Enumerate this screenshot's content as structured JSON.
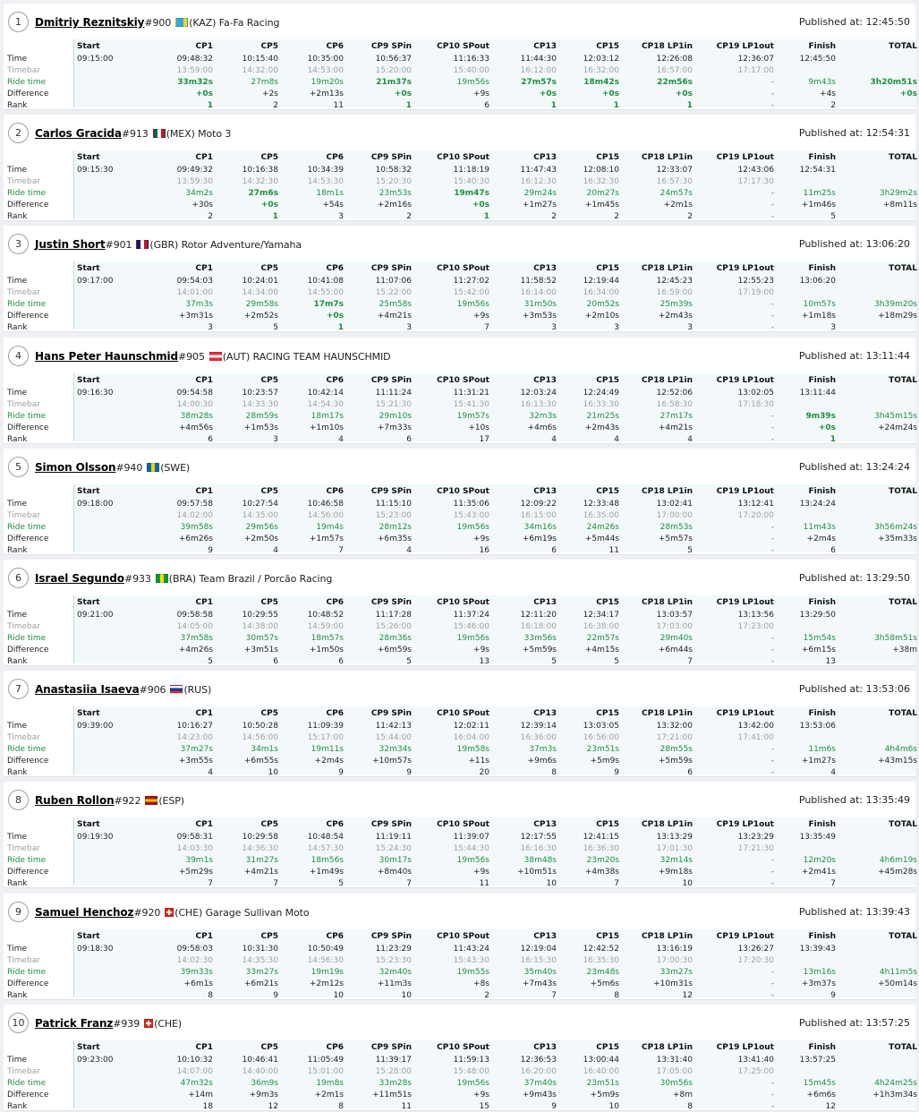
{
  "columns": {
    "start": "Start",
    "checkpoints": [
      "CP1",
      "CP5",
      "CP6",
      "CP9 SPin",
      "CP10 SPout",
      "CP13",
      "CP15",
      "CP18 LP1in",
      "CP19 LP1out"
    ],
    "finish": "Finish",
    "total": "TOTAL"
  },
  "row_labels": {
    "time": "Time",
    "timebar": "Timebar",
    "ride": "Ride time",
    "diff": "Difference",
    "rank": "Rank"
  },
  "published_label": "Published at:",
  "flag_colors": {
    "KAZ": [
      "#31a9e0",
      "#31a9e0",
      "#ffd700"
    ],
    "MEX": [
      "#006847",
      "#ffffff",
      "#ce1126"
    ],
    "GBR": [
      "#012169",
      "#ffffff",
      "#c8102e"
    ],
    "AUT": [
      "#ed2939",
      "#ffffff",
      "#ed2939"
    ],
    "SWE": [
      "#006aa7",
      "#fecc00",
      "#006aa7"
    ],
    "BRA": [
      "#009c3b",
      "#ffdf00",
      "#009c3b"
    ],
    "RUS": [
      "#ffffff",
      "#0039a6",
      "#d52b1e"
    ],
    "ESP": [
      "#aa151b",
      "#f1bf00",
      "#aa151b"
    ],
    "CHE": [
      "#d52b1e",
      "#ffffff",
      "#d52b1e"
    ]
  },
  "riders": [
    {
      "position": "1",
      "name": "Dmitriy Reznitskiy",
      "number": "#900",
      "country": "KAZ",
      "team": "(KAZ) Fa-Fa Racing",
      "published": "12:45:50",
      "start": "09:15:00",
      "time": [
        "09:48:32",
        "10:15:40",
        "10:35:00",
        "10:56:37",
        "11:16:33",
        "11:44:30",
        "12:03:12",
        "12:26:08",
        "12:36:07"
      ],
      "timebar": [
        "13:59:00",
        "14:32:00",
        "14:53:00",
        "15:20:00",
        "15:40:00",
        "16:12:00",
        "16:32:00",
        "16:57:00",
        "17:17:00"
      ],
      "ride": [
        "33m32s",
        "27m8s",
        "19m20s",
        "21m37s",
        "19m56s",
        "27m57s",
        "18m42s",
        "22m56s",
        "-"
      ],
      "diff": [
        "+0s",
        "+2s",
        "+2m13s",
        "+0s",
        "+9s",
        "+0s",
        "+0s",
        "+0s",
        "-"
      ],
      "rank": [
        "1",
        "2",
        "11",
        "1",
        "6",
        "1",
        "1",
        "1",
        "-"
      ],
      "best": [
        1,
        0,
        0,
        1,
        0,
        1,
        1,
        1,
        0
      ],
      "finish": {
        "time": "12:45:50",
        "ride": "9m43s",
        "diff": "+4s",
        "rank": "2",
        "best": 0
      },
      "total": {
        "ride": "3h20m51s",
        "diff": "+0s",
        "best": 1
      }
    },
    {
      "position": "2",
      "name": "Carlos Gracida",
      "number": "#913",
      "country": "MEX",
      "team": "(MEX) Moto 3",
      "published": "12:54:31",
      "start": "09:15:30",
      "time": [
        "09:49:32",
        "10:16:38",
        "10:34:39",
        "10:58:32",
        "11:18:19",
        "11:47:43",
        "12:08:10",
        "12:33:07",
        "12:43:06"
      ],
      "timebar": [
        "13:59:30",
        "14:32:30",
        "14:53:30",
        "15:20:30",
        "15:40:30",
        "16:12:30",
        "16:32:30",
        "16:57:30",
        "17:17:30"
      ],
      "ride": [
        "34m2s",
        "27m6s",
        "18m1s",
        "23m53s",
        "19m47s",
        "29m24s",
        "20m27s",
        "24m57s",
        "-"
      ],
      "diff": [
        "+30s",
        "+0s",
        "+54s",
        "+2m16s",
        "+0s",
        "+1m27s",
        "+1m45s",
        "+2m1s",
        "-"
      ],
      "rank": [
        "2",
        "1",
        "3",
        "2",
        "1",
        "2",
        "2",
        "2",
        "-"
      ],
      "best": [
        0,
        1,
        0,
        0,
        1,
        0,
        0,
        0,
        0
      ],
      "finish": {
        "time": "12:54:31",
        "ride": "11m25s",
        "diff": "+1m46s",
        "rank": "5",
        "best": 0
      },
      "total": {
        "ride": "3h29m2s",
        "diff": "+8m11s",
        "best": 0
      }
    },
    {
      "position": "3",
      "name": "Justin Short",
      "number": "#901",
      "country": "GBR",
      "team": "(GBR) Rotor Adventure/Yamaha",
      "published": "13:06:20",
      "start": "09:17:00",
      "time": [
        "09:54:03",
        "10:24:01",
        "10:41:08",
        "11:07:06",
        "11:27:02",
        "11:58:52",
        "12:19:44",
        "12:45:23",
        "12:55:23"
      ],
      "timebar": [
        "14:01:00",
        "14:34:00",
        "14:55:00",
        "15:22:00",
        "15:42:00",
        "16:14:00",
        "16:34:00",
        "16:59:00",
        "17:19:00"
      ],
      "ride": [
        "37m3s",
        "29m58s",
        "17m7s",
        "25m58s",
        "19m56s",
        "31m50s",
        "20m52s",
        "25m39s",
        "-"
      ],
      "diff": [
        "+3m31s",
        "+2m52s",
        "+0s",
        "+4m21s",
        "+9s",
        "+3m53s",
        "+2m10s",
        "+2m43s",
        "-"
      ],
      "rank": [
        "3",
        "5",
        "1",
        "3",
        "7",
        "3",
        "3",
        "3",
        "-"
      ],
      "best": [
        0,
        0,
        1,
        0,
        0,
        0,
        0,
        0,
        0
      ],
      "finish": {
        "time": "13:06:20",
        "ride": "10m57s",
        "diff": "+1m18s",
        "rank": "3",
        "best": 0
      },
      "total": {
        "ride": "3h39m20s",
        "diff": "+18m29s",
        "best": 0
      }
    },
    {
      "position": "4",
      "name": "Hans Peter Haunschmid",
      "number": "#905",
      "country": "AUT",
      "team": "(AUT) RACING TEAM HAUNSCHMID",
      "published": "13:11:44",
      "start": "09:16:30",
      "time": [
        "09:54:58",
        "10:23:57",
        "10:42:14",
        "11:11:24",
        "11:31:21",
        "12:03:24",
        "12:24:49",
        "12:52:06",
        "13:02:05"
      ],
      "timebar": [
        "14:00:30",
        "14:33:30",
        "14:54:30",
        "15:21:30",
        "15:41:30",
        "16:13:30",
        "16:33:30",
        "16:58:30",
        "17:18:30"
      ],
      "ride": [
        "38m28s",
        "28m59s",
        "18m17s",
        "29m10s",
        "19m57s",
        "32m3s",
        "21m25s",
        "27m17s",
        "-"
      ],
      "diff": [
        "+4m56s",
        "+1m53s",
        "+1m10s",
        "+7m33s",
        "+10s",
        "+4m6s",
        "+2m43s",
        "+4m21s",
        "-"
      ],
      "rank": [
        "6",
        "3",
        "4",
        "6",
        "17",
        "4",
        "4",
        "4",
        "-"
      ],
      "best": [
        0,
        0,
        0,
        0,
        0,
        0,
        0,
        0,
        0
      ],
      "finish": {
        "time": "13:11:44",
        "ride": "9m39s",
        "diff": "+0s",
        "rank": "1",
        "best": 1
      },
      "total": {
        "ride": "3h45m15s",
        "diff": "+24m24s",
        "best": 0
      }
    },
    {
      "position": "5",
      "name": "Simon Olsson",
      "number": "#940",
      "country": "SWE",
      "team": "(SWE)",
      "published": "13:24:24",
      "start": "09:18:00",
      "time": [
        "09:57:58",
        "10:27:54",
        "10:46:58",
        "11:15:10",
        "11:35:06",
        "12:09:22",
        "12:33:48",
        "13:02:41",
        "13:12:41"
      ],
      "timebar": [
        "14:02:00",
        "14:35:00",
        "14:56:00",
        "15:23:00",
        "15:43:00",
        "16:15:00",
        "16:35:00",
        "17:00:00",
        "17:20:00"
      ],
      "ride": [
        "39m58s",
        "29m56s",
        "19m4s",
        "28m12s",
        "19m56s",
        "34m16s",
        "24m26s",
        "28m53s",
        "-"
      ],
      "diff": [
        "+6m26s",
        "+2m50s",
        "+1m57s",
        "+6m35s",
        "+9s",
        "+6m19s",
        "+5m44s",
        "+5m57s",
        "-"
      ],
      "rank": [
        "9",
        "4",
        "7",
        "4",
        "16",
        "6",
        "11",
        "5",
        "-"
      ],
      "best": [
        0,
        0,
        0,
        0,
        0,
        0,
        0,
        0,
        0
      ],
      "finish": {
        "time": "13:24:24",
        "ride": "11m43s",
        "diff": "+2m4s",
        "rank": "6",
        "best": 0
      },
      "total": {
        "ride": "3h56m24s",
        "diff": "+35m33s",
        "best": 0
      }
    },
    {
      "position": "6",
      "name": "Israel Segundo",
      "number": "#933",
      "country": "BRA",
      "team": "(BRA) Team Brazil / Porcão Racing",
      "published": "13:29:50",
      "start": "09:21:00",
      "time": [
        "09:58:58",
        "10:29:55",
        "10:48:52",
        "11:17:28",
        "11:37:24",
        "12:11:20",
        "12:34:17",
        "13:03:57",
        "13:13:56"
      ],
      "timebar": [
        "14:05:00",
        "14:38:00",
        "14:59:00",
        "15:26:00",
        "15:46:00",
        "16:18:00",
        "16:38:00",
        "17:03:00",
        "17:23:00"
      ],
      "ride": [
        "37m58s",
        "30m57s",
        "18m57s",
        "28m36s",
        "19m56s",
        "33m56s",
        "22m57s",
        "29m40s",
        "-"
      ],
      "diff": [
        "+4m26s",
        "+3m51s",
        "+1m50s",
        "+6m59s",
        "+9s",
        "+5m59s",
        "+4m15s",
        "+6m44s",
        "-"
      ],
      "rank": [
        "5",
        "6",
        "6",
        "5",
        "13",
        "5",
        "5",
        "7",
        "-"
      ],
      "best": [
        0,
        0,
        0,
        0,
        0,
        0,
        0,
        0,
        0
      ],
      "finish": {
        "time": "13:29:50",
        "ride": "15m54s",
        "diff": "+6m15s",
        "rank": "13",
        "best": 0
      },
      "total": {
        "ride": "3h58m51s",
        "diff": "+38m",
        "best": 0
      }
    },
    {
      "position": "7",
      "name": "Anastasiia Isaeva",
      "number": "#906",
      "country": "RUS",
      "team": "(RUS)",
      "published": "13:53:06",
      "start": "09:39:00",
      "time": [
        "10:16:27",
        "10:50:28",
        "11:09:39",
        "11:42:13",
        "12:02:11",
        "12:39:14",
        "13:03:05",
        "13:32:00",
        "13:42:00"
      ],
      "timebar": [
        "14:23:00",
        "14:56:00",
        "15:17:00",
        "15:44:00",
        "16:04:00",
        "16:36:00",
        "16:56:00",
        "17:21:00",
        "17:41:00"
      ],
      "ride": [
        "37m27s",
        "34m1s",
        "19m11s",
        "32m34s",
        "19m58s",
        "37m3s",
        "23m51s",
        "28m55s",
        "-"
      ],
      "diff": [
        "+3m55s",
        "+6m55s",
        "+2m4s",
        "+10m57s",
        "+11s",
        "+9m6s",
        "+5m9s",
        "+5m59s",
        "-"
      ],
      "rank": [
        "4",
        "10",
        "9",
        "9",
        "20",
        "8",
        "9",
        "6",
        "-"
      ],
      "best": [
        0,
        0,
        0,
        0,
        0,
        0,
        0,
        0,
        0
      ],
      "finish": {
        "time": "13:53:06",
        "ride": "11m6s",
        "diff": "+1m27s",
        "rank": "4",
        "best": 0
      },
      "total": {
        "ride": "4h4m6s",
        "diff": "+43m15s",
        "best": 0
      }
    },
    {
      "position": "8",
      "name": "Ruben Rollon",
      "number": "#922",
      "country": "ESP",
      "team": "(ESP)",
      "published": "13:35:49",
      "start": "09:19:30",
      "time": [
        "09:58:31",
        "10:29:58",
        "10:48:54",
        "11:19:11",
        "11:39:07",
        "12:17:55",
        "12:41:15",
        "13:13:29",
        "13:23:29"
      ],
      "timebar": [
        "14:03:30",
        "14:36:30",
        "14:57:30",
        "15:24:30",
        "15:44:30",
        "16:16:30",
        "16:36:30",
        "17:01:30",
        "17:21:30"
      ],
      "ride": [
        "39m1s",
        "31m27s",
        "18m56s",
        "30m17s",
        "19m56s",
        "38m48s",
        "23m20s",
        "32m14s",
        "-"
      ],
      "diff": [
        "+5m29s",
        "+4m21s",
        "+1m49s",
        "+8m40s",
        "+9s",
        "+10m51s",
        "+4m38s",
        "+9m18s",
        "-"
      ],
      "rank": [
        "7",
        "7",
        "5",
        "7",
        "11",
        "10",
        "7",
        "10",
        "-"
      ],
      "best": [
        0,
        0,
        0,
        0,
        0,
        0,
        0,
        0,
        0
      ],
      "finish": {
        "time": "13:35:49",
        "ride": "12m20s",
        "diff": "+2m41s",
        "rank": "7",
        "best": 0
      },
      "total": {
        "ride": "4h6m19s",
        "diff": "+45m28s",
        "best": 0
      }
    },
    {
      "position": "9",
      "name": "Samuel Henchoz",
      "number": "#920",
      "country": "CHE",
      "team": "(CHE) Garage Sullivan Moto",
      "published": "13:39:43",
      "start": "09:18:30",
      "time": [
        "09:58:03",
        "10:31:30",
        "10:50:49",
        "11:23:29",
        "11:43:24",
        "12:19:04",
        "12:42:52",
        "13:16:19",
        "13:26:27"
      ],
      "timebar": [
        "14:02:30",
        "14:35:30",
        "14:56:30",
        "15:23:30",
        "15:43:30",
        "16:15:30",
        "16:35:30",
        "17:00:30",
        "17:20:30"
      ],
      "ride": [
        "39m33s",
        "33m27s",
        "19m19s",
        "32m40s",
        "19m55s",
        "35m40s",
        "23m48s",
        "33m27s",
        "-"
      ],
      "diff": [
        "+6m1s",
        "+6m21s",
        "+2m12s",
        "+11m3s",
        "+8s",
        "+7m43s",
        "+5m6s",
        "+10m31s",
        "-"
      ],
      "rank": [
        "8",
        "9",
        "10",
        "10",
        "2",
        "7",
        "8",
        "12",
        "-"
      ],
      "best": [
        0,
        0,
        0,
        0,
        0,
        0,
        0,
        0,
        0
      ],
      "finish": {
        "time": "13:39:43",
        "ride": "13m16s",
        "diff": "+3m37s",
        "rank": "9",
        "best": 0
      },
      "total": {
        "ride": "4h11m5s",
        "diff": "+50m14s",
        "best": 0
      }
    },
    {
      "position": "10",
      "name": "Patrick Franz",
      "number": "#939",
      "country": "CHE",
      "team": "(CHE)",
      "published": "13:57:25",
      "start": "09:23:00",
      "time": [
        "10:10:32",
        "10:46:41",
        "11:05:49",
        "11:39:17",
        "11:59:13",
        "12:36:53",
        "13:00:44",
        "13:31:40",
        "13:41:40"
      ],
      "timebar": [
        "14:07:00",
        "14:40:00",
        "15:01:00",
        "15:28:00",
        "15:48:00",
        "16:20:00",
        "16:40:00",
        "17:05:00",
        "17:25:00"
      ],
      "ride": [
        "47m32s",
        "36m9s",
        "19m8s",
        "33m28s",
        "19m56s",
        "37m40s",
        "23m51s",
        "30m56s",
        "-"
      ],
      "diff": [
        "+14m",
        "+9m3s",
        "+2m1s",
        "+11m51s",
        "+9s",
        "+9m43s",
        "+5m9s",
        "+8m",
        "-"
      ],
      "rank": [
        "18",
        "12",
        "8",
        "11",
        "15",
        "9",
        "10",
        "8",
        "-"
      ],
      "best": [
        0,
        0,
        0,
        0,
        0,
        0,
        0,
        0,
        0
      ],
      "finish": {
        "time": "13:57:25",
        "ride": "15m45s",
        "diff": "+6m6s",
        "rank": "12",
        "best": 0
      },
      "total": {
        "ride": "4h24m25s",
        "diff": "+1h3m34s",
        "best": 0
      }
    }
  ]
}
